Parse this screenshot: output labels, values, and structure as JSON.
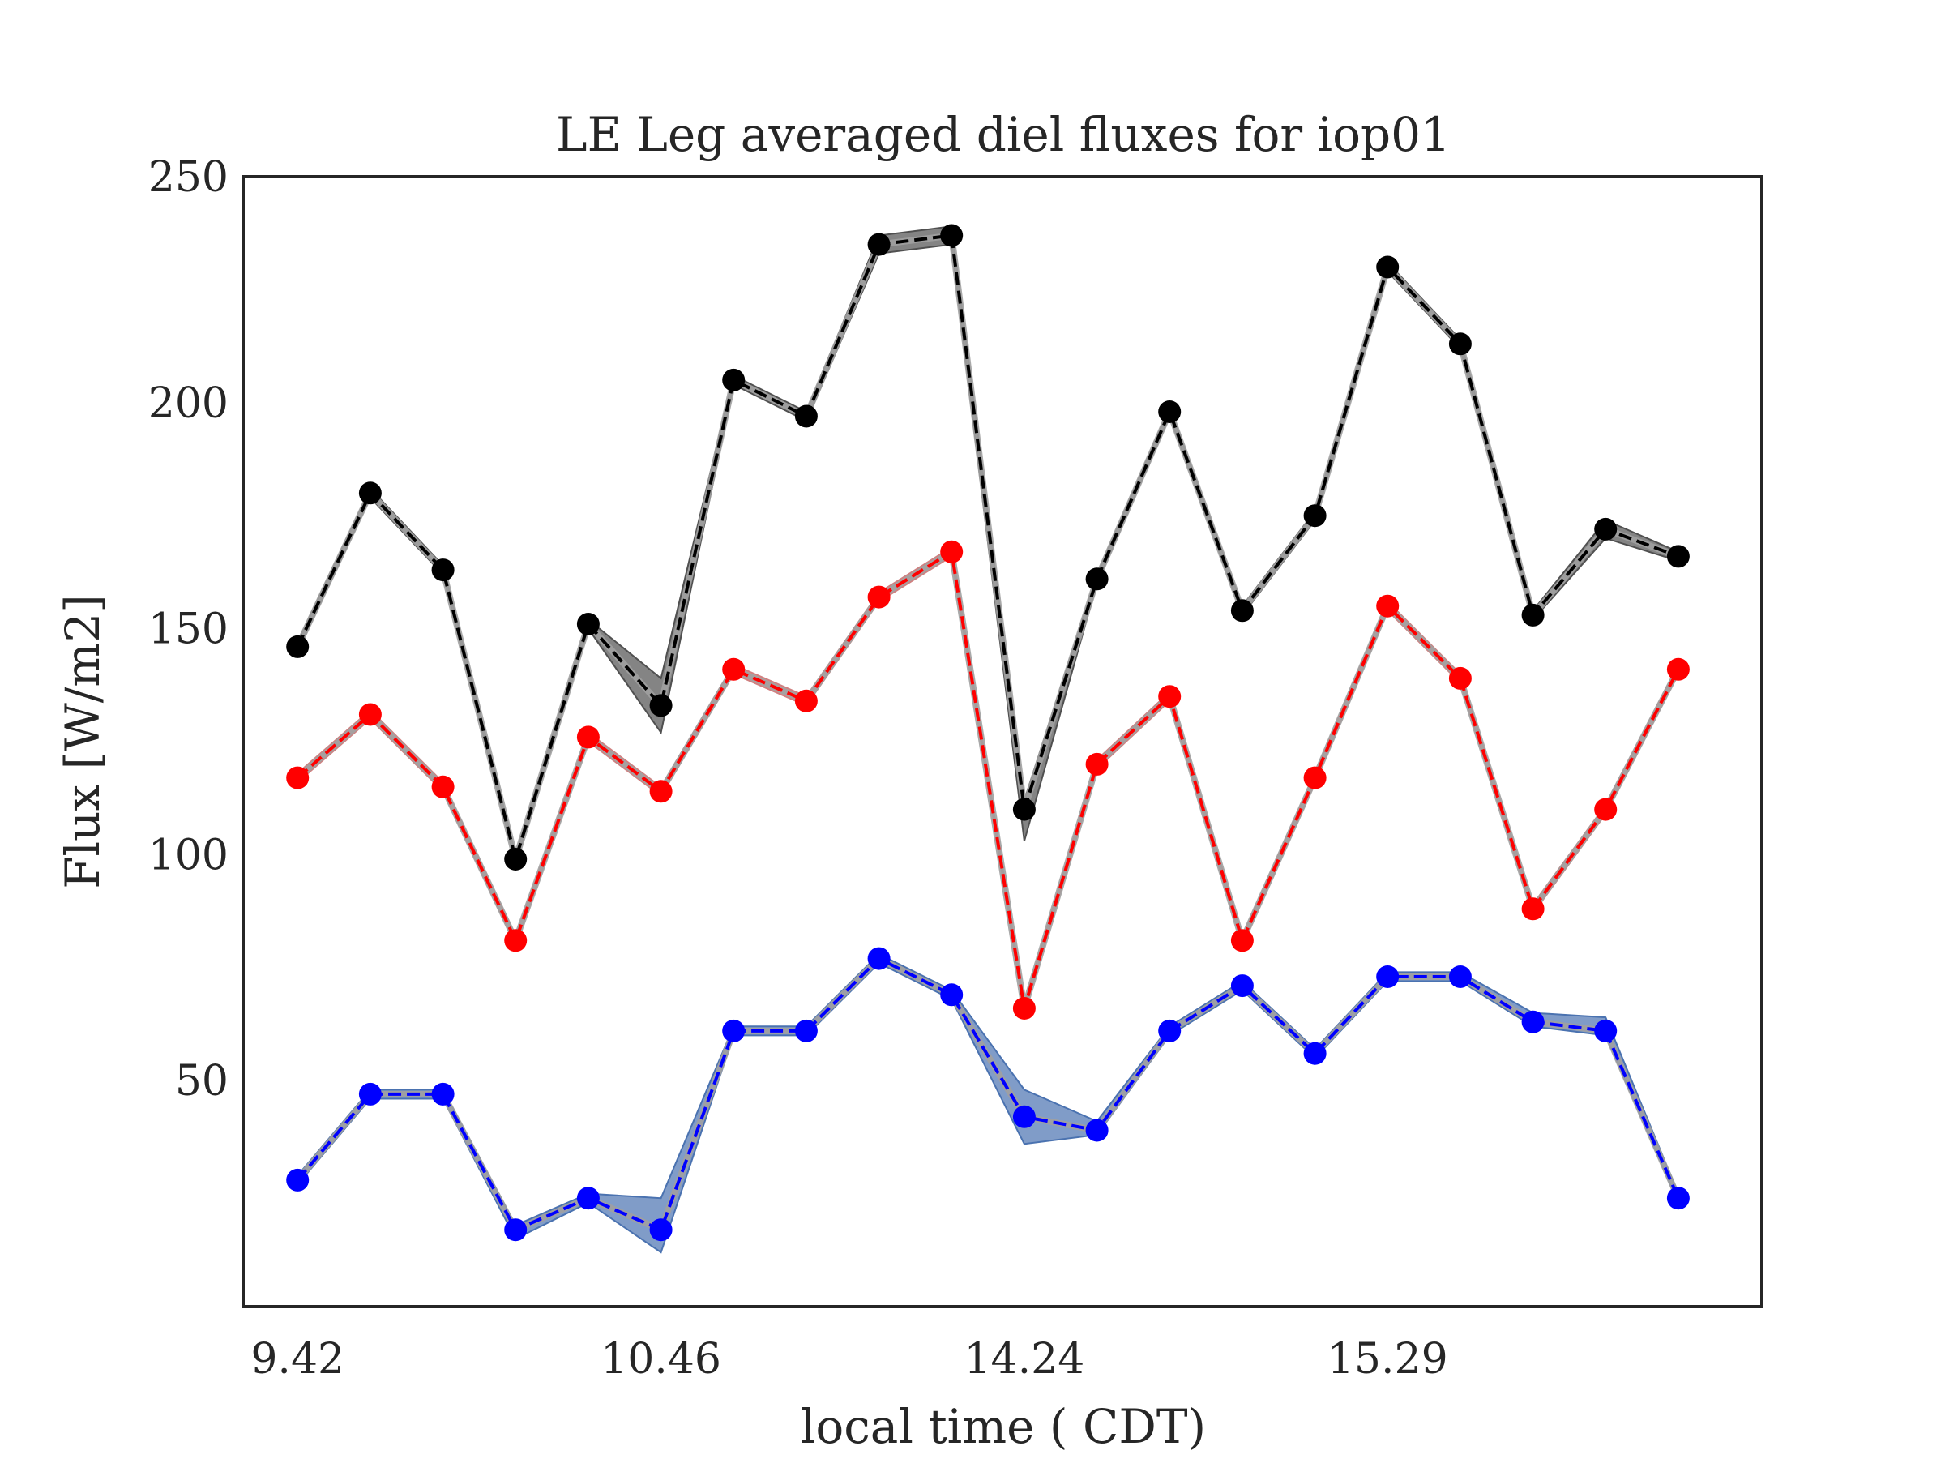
{
  "chart_data": {
    "type": "line",
    "title": "LE Leg averaged diel fluxes for iop01",
    "xlabel": "local time ( CDT)",
    "ylabel": "Flux [W/m2]",
    "x_tick_labels": [
      "9.42",
      "10.46",
      "14.24",
      "15.29"
    ],
    "x_tick_positions": [
      1,
      6,
      11,
      16
    ],
    "x": [
      1,
      2,
      3,
      4,
      5,
      6,
      7,
      8,
      9,
      10,
      11,
      12,
      13,
      14,
      15,
      16,
      17,
      18,
      19,
      20
    ],
    "xlim": [
      0.25,
      21.15
    ],
    "ylim": [
      0,
      250
    ],
    "yticks": [
      50,
      100,
      150,
      200,
      250
    ],
    "grid": false,
    "legend": "none",
    "series": [
      {
        "color": "#000000",
        "band_color": "#505050",
        "values": [
          146,
          180,
          163,
          99,
          151,
          133,
          205,
          197,
          235,
          237,
          110,
          161,
          198,
          154,
          175,
          230,
          213,
          153,
          172,
          166
        ],
        "upper": [
          147,
          181,
          164,
          100,
          152,
          139,
          206,
          198,
          237,
          239,
          112,
          162,
          199,
          155,
          176,
          231,
          214,
          154,
          174,
          167
        ],
        "lower": [
          145,
          179,
          162,
          98,
          150,
          127,
          204,
          196,
          233,
          235,
          103,
          160,
          197,
          153,
          174,
          229,
          212,
          152,
          170,
          165
        ]
      },
      {
        "color": "#ff0000",
        "band_color": "#d08080",
        "values": [
          117,
          131,
          115,
          81,
          126,
          114,
          141,
          134,
          157,
          167,
          66,
          120,
          135,
          81,
          117,
          155,
          139,
          88,
          110,
          141
        ],
        "upper": [
          118,
          132,
          116,
          82,
          127,
          115,
          142,
          135,
          158,
          168,
          67,
          121,
          136,
          82,
          118,
          156,
          140,
          89,
          111,
          142
        ],
        "lower": [
          116,
          130,
          114,
          80,
          125,
          113,
          140,
          133,
          156,
          166,
          65,
          119,
          134,
          80,
          116,
          154,
          138,
          87,
          109,
          140
        ]
      },
      {
        "color": "#0000ff",
        "band_color": "#4a72b0",
        "values": [
          28,
          47,
          47,
          17,
          24,
          17,
          61,
          61,
          77,
          69,
          42,
          39,
          61,
          71,
          56,
          73,
          73,
          63,
          61,
          24
        ],
        "upper": [
          29,
          48,
          48,
          18,
          25,
          24,
          62,
          62,
          78,
          70,
          48,
          41,
          62,
          72,
          57,
          74,
          74,
          65,
          64,
          25
        ],
        "lower": [
          27,
          46,
          46,
          15,
          23,
          12,
          60,
          60,
          76,
          68,
          36,
          38,
          60,
          70,
          55,
          72,
          72,
          62,
          60,
          23
        ]
      }
    ]
  }
}
